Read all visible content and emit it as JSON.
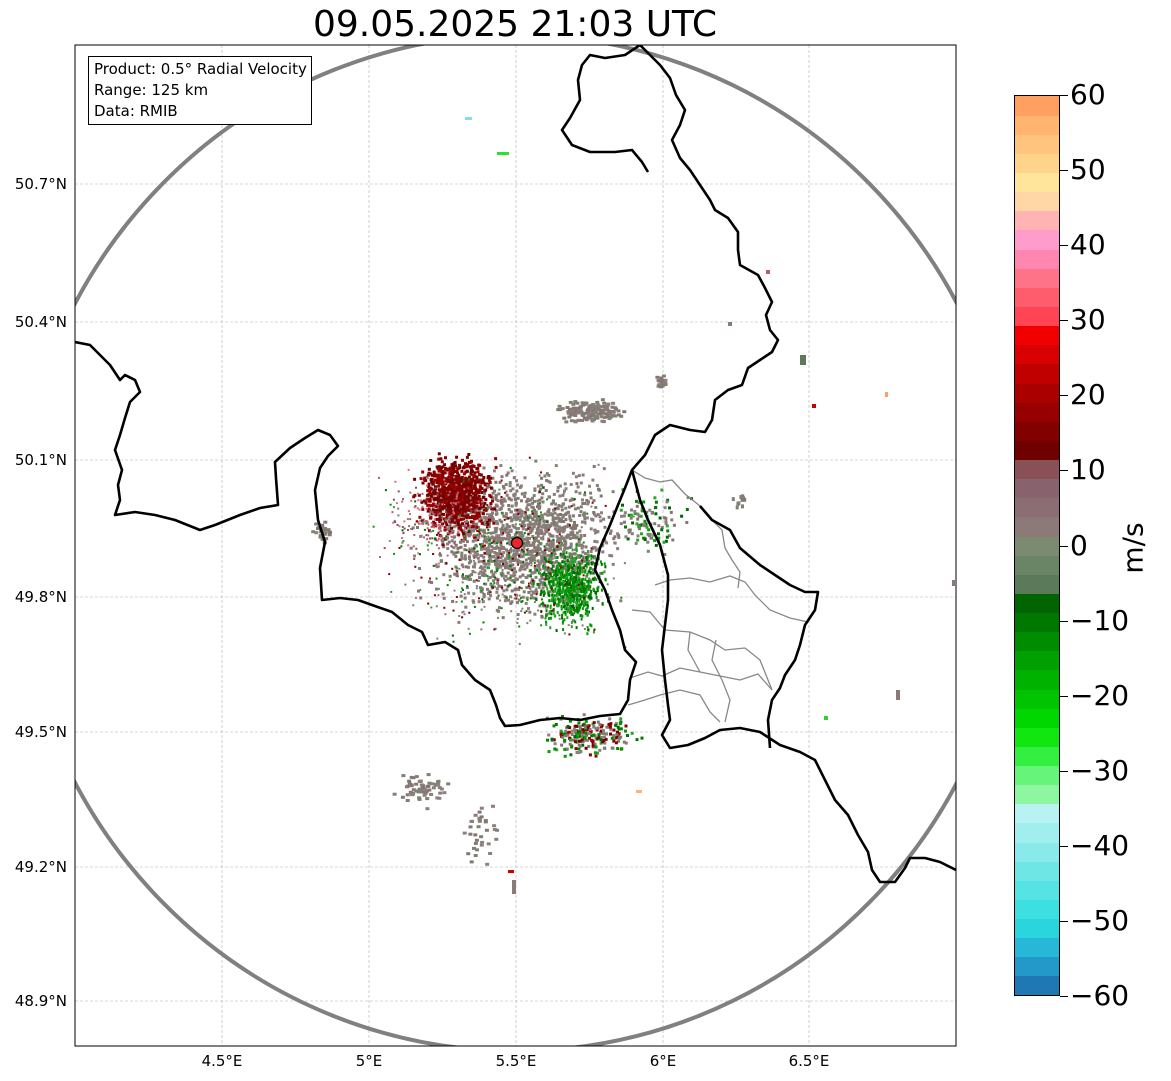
{
  "title": "09.05.2025 21:03 UTC",
  "info": {
    "product": "Product: 0.5° Radial Velocity",
    "range": "Range: 125 km",
    "source": "Data: RMIB"
  },
  "axes": {
    "lat_ticks": [
      "50.7°N",
      "50.4°N",
      "50.1°N",
      "49.8°N",
      "49.5°N",
      "49.2°N",
      "48.9°N"
    ],
    "lon_ticks": [
      "4.5°E",
      "5°E",
      "5.5°E",
      "6°E",
      "6.5°E"
    ]
  },
  "radar": {
    "site_lon": 5.5,
    "site_lat": 49.91,
    "range_km": 125,
    "site_color": "#e8262c"
  },
  "colorbar": {
    "label": "m/s",
    "min": -60,
    "max": 60,
    "ticks": [
      "60",
      "50",
      "40",
      "30",
      "20",
      "10",
      "0",
      "−10",
      "−20",
      "−30",
      "−40",
      "−50",
      "−60"
    ],
    "colors": [
      "#1f77b4",
      "#2299c8",
      "#26b8d6",
      "#2bd5de",
      "#3ddfe0",
      "#55e3e3",
      "#6ee6e6",
      "#88eaea",
      "#a0eeee",
      "#b8f2f2",
      "#8ef5a0",
      "#66f57a",
      "#33ef40",
      "#11e611",
      "#00d600",
      "#00c400",
      "#00b200",
      "#00a000",
      "#008c00",
      "#007800",
      "#006400",
      "#5a7a5a",
      "#6a8466",
      "#7c8a72",
      "#8c7a78",
      "#8a6e74",
      "#88626c",
      "#8a5058",
      "#6e0000",
      "#820000",
      "#960000",
      "#aa0000",
      "#c00000",
      "#d80000",
      "#f00000",
      "#ff4455",
      "#ff5c6e",
      "#ff7388",
      "#ff86b0",
      "#ff9ccc",
      "#ffb3b3",
      "#ffd6a5",
      "#ffe49c",
      "#ffd48a",
      "#ffc47e",
      "#ffb470",
      "#ffa060"
    ]
  }
}
